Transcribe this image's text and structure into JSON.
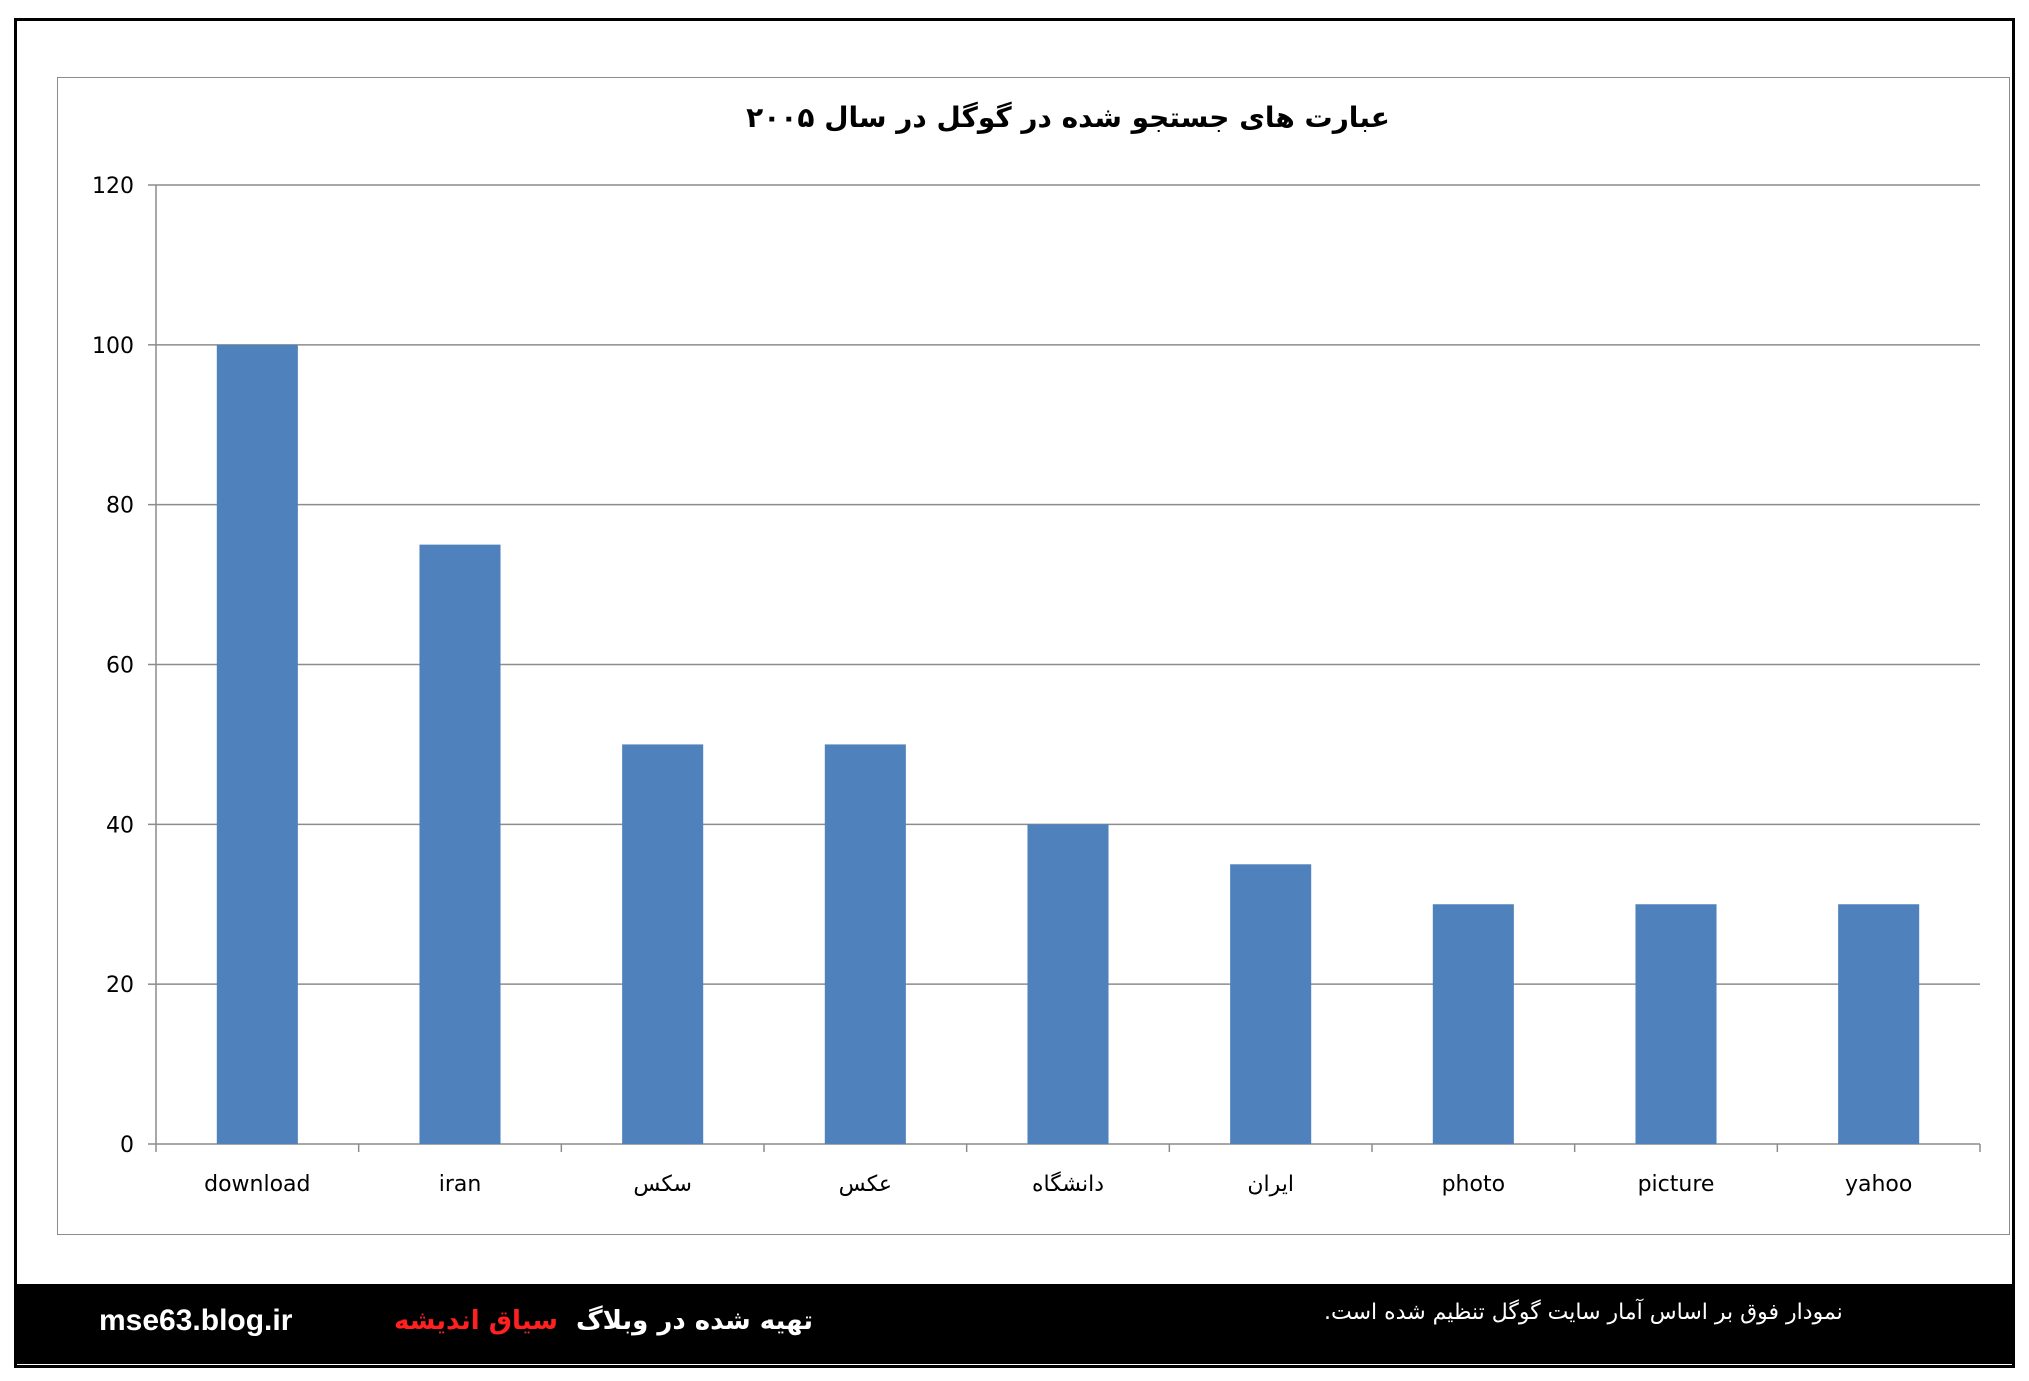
{
  "chart_data": {
    "type": "bar",
    "title": "عبارت های جستجو شده در گوگل در سال ۲۰۰۵",
    "categories": [
      "download",
      "iran",
      "سکس",
      "عکس",
      "دانشگاه",
      "ایران",
      "photo",
      "picture",
      "yahoo"
    ],
    "values": [
      100,
      75,
      50,
      50,
      40,
      35,
      30,
      30,
      30
    ],
    "ylim": [
      0,
      120
    ],
    "yticks": [
      0,
      20,
      40,
      60,
      80,
      100,
      120
    ],
    "grid": true,
    "legend": "none",
    "bar_color": "#4f81bd",
    "grid_color": "#8c8c8c"
  },
  "footer": {
    "url": "mse63.blog.ir",
    "credit_prefix": "تهیه شده در وبلاگ",
    "credit_blog": "سیاق اندیشه",
    "note": "نمودار فوق بر اساس آمار سایت گوگل تنظیم شده است."
  },
  "colors": {
    "footer_bg": "#000000",
    "credit_highlight": "#ff2020"
  }
}
